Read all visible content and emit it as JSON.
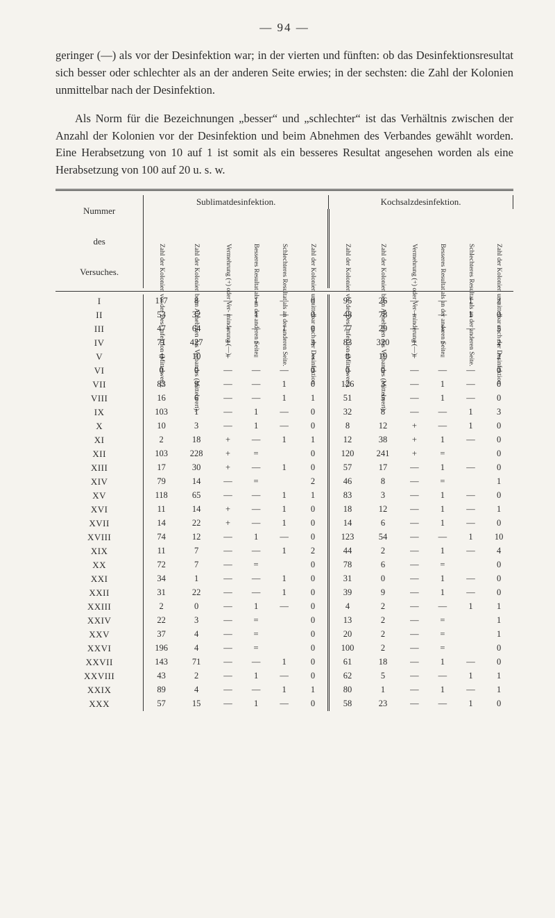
{
  "page_number": "—   94   —",
  "paragraph1": "geringer (—) als vor der Desinfektion war; in der vierten und fünften: ob das Desinfektionsresultat sich besser oder schlechter als an der anderen Seite erwies; in der sechsten: die Zahl der Kolonien unmittelbar nach der Desinfektion.",
  "paragraph2": "Als Norm für die Bezeichnungen „besser“ und „schlechter“ ist das Verhältnis zwischen der Anzahl der Kolonien vor der Des­infektion und beim Abnehmen des Verbandes gewählt worden. Eine Herabsetzung von 10 auf 1 ist somit als ein besseres Resultat angesehen worden als eine Herabsetzung von 100 auf 20 u. s. w.",
  "table": {
    "left_label_lines": [
      "Nummer",
      "des",
      "Versuches."
    ],
    "group_headers": [
      "Sublimatdesinfektion.",
      "Kochsalzdesinfektion."
    ],
    "col_headers": [
      "Zahl der Kolonien vor der Des-\ninfektion (Mittelwert).",
      "Zahl der Kolonien beim Abnehmen\ndes Verbandes (Mittelwert).",
      "Vermehrung (+) oder Ver-\nminderung (—).",
      "Besseres Resultat als an der\nanderen Seite.",
      "Schlechteres Resultat als an der\nanderen Seite.",
      "Zahl der Kolonien unmittelbar\nnach der Desinfektion.",
      "Zahl der Kolonien vor der Des-\ninfektion (Mittelwert).",
      "Zahl der Kolonien beim Abnehmen\ndes Verbandes (Mittelwert).",
      "Vermehrung (+) oder Ver-\nminderung (—).",
      "Besseres Resultat als an der\nanderen Seite.",
      "Schlechteres Resultat als an der\nanderen Seite.",
      "Zahl der Kolonien unmittelbar\nnach der Desinfektion."
    ],
    "rows": [
      [
        "I",
        "117",
        "8",
        "—",
        "1",
        "—",
        "0",
        "95",
        "26",
        "—",
        "—",
        "1",
        "2"
      ],
      [
        "II",
        "53",
        "32",
        "—",
        "1",
        "—",
        "0",
        "48",
        "78",
        "+",
        "—",
        "1",
        "0"
      ],
      [
        "III",
        "47",
        "64",
        "+",
        "—",
        "1",
        "0",
        "77",
        "29",
        "—",
        "1",
        "—",
        "5"
      ],
      [
        "IV",
        "71",
        "427",
        "+",
        "=",
        "",
        "3",
        "83",
        "320",
        "+",
        "=",
        "",
        "2"
      ],
      [
        "V",
        "4",
        "10",
        "+",
        "=",
        "",
        "1",
        "8",
        "19",
        "+",
        "=",
        "",
        "2"
      ],
      [
        "VI",
        "0",
        "0",
        "—",
        "—",
        "—",
        "0",
        "0",
        "0",
        "—",
        "—",
        "—",
        "0"
      ],
      [
        "VII",
        "83",
        "9",
        "—",
        "—",
        "1",
        "0",
        "126",
        "3",
        "—",
        "1",
        "—",
        "0"
      ],
      [
        "VIII",
        "16",
        "6",
        "—",
        "—",
        "1",
        "1",
        "51",
        "5",
        "—",
        "1",
        "—",
        "0"
      ],
      [
        "IX",
        "103",
        "1",
        "—",
        "1",
        "—",
        "0",
        "32",
        "8",
        "—",
        "—",
        "1",
        "3"
      ],
      [
        "X",
        "10",
        "3",
        "—",
        "1",
        "—",
        "0",
        "8",
        "12",
        "+",
        "—",
        "1",
        "0"
      ],
      [
        "XI",
        "2",
        "18",
        "+",
        "—",
        "1",
        "1",
        "12",
        "38",
        "+",
        "1",
        "—",
        "0"
      ],
      [
        "XII",
        "103",
        "228",
        "+",
        "=",
        "",
        "0",
        "120",
        "241",
        "+",
        "=",
        "",
        "0"
      ],
      [
        "XIII",
        "17",
        "30",
        "+",
        "—",
        "1",
        "0",
        "57",
        "17",
        "—",
        "1",
        "—",
        "0"
      ],
      [
        "XIV",
        "79",
        "14",
        "—",
        "=",
        "",
        "2",
        "46",
        "8",
        "—",
        "=",
        "",
        "1"
      ],
      [
        "XV",
        "118",
        "65",
        "—",
        "—",
        "1",
        "1",
        "83",
        "3",
        "—",
        "1",
        "—",
        "0"
      ],
      [
        "XVI",
        "11",
        "14",
        "+",
        "—",
        "1",
        "0",
        "18",
        "12",
        "—",
        "1",
        "—",
        "1"
      ],
      [
        "XVII",
        "14",
        "22",
        "+",
        "—",
        "1",
        "0",
        "14",
        "6",
        "—",
        "1",
        "—",
        "0"
      ],
      [
        "XVIII",
        "74",
        "12",
        "—",
        "1",
        "—",
        "0",
        "123",
        "54",
        "—",
        "—",
        "1",
        "10"
      ],
      [
        "XIX",
        "11",
        "7",
        "—",
        "—",
        "1",
        "2",
        "44",
        "2",
        "—",
        "1",
        "—",
        "4"
      ],
      [
        "XX",
        "72",
        "7",
        "—",
        "=",
        "",
        "0",
        "78",
        "6",
        "—",
        "=",
        "",
        "0"
      ],
      [
        "XXI",
        "34",
        "1",
        "—",
        "—",
        "1",
        "0",
        "31",
        "0",
        "—",
        "1",
        "—",
        "0"
      ],
      [
        "XXII",
        "31",
        "22",
        "—",
        "—",
        "1",
        "0",
        "39",
        "9",
        "—",
        "1",
        "—",
        "0"
      ],
      [
        "XXIII",
        "2",
        "0",
        "—",
        "1",
        "—",
        "0",
        "4",
        "2",
        "—",
        "—",
        "1",
        "1"
      ],
      [
        "XXIV",
        "22",
        "3",
        "—",
        "=",
        "",
        "0",
        "13",
        "2",
        "—",
        "=",
        "",
        "1"
      ],
      [
        "XXV",
        "37",
        "4",
        "—",
        "=",
        "",
        "0",
        "20",
        "2",
        "—",
        "=",
        "",
        "1"
      ],
      [
        "XXVI",
        "196",
        "4",
        "—",
        "=",
        "",
        "0",
        "100",
        "2",
        "—",
        "=",
        "",
        "0"
      ],
      [
        "XXVII",
        "143",
        "71",
        "—",
        "—",
        "1",
        "0",
        "61",
        "18",
        "—",
        "1",
        "—",
        "0"
      ],
      [
        "XXVIII",
        "43",
        "2",
        "—",
        "1",
        "—",
        "0",
        "62",
        "5",
        "—",
        "—",
        "1",
        "1"
      ],
      [
        "XXIX",
        "89",
        "4",
        "—",
        "—",
        "1",
        "1",
        "80",
        "1",
        "—",
        "1",
        "—",
        "1"
      ],
      [
        "XXX",
        "57",
        "15",
        "—",
        "1",
        "—",
        "0",
        "58",
        "23",
        "—",
        "—",
        "1",
        "0"
      ]
    ]
  }
}
